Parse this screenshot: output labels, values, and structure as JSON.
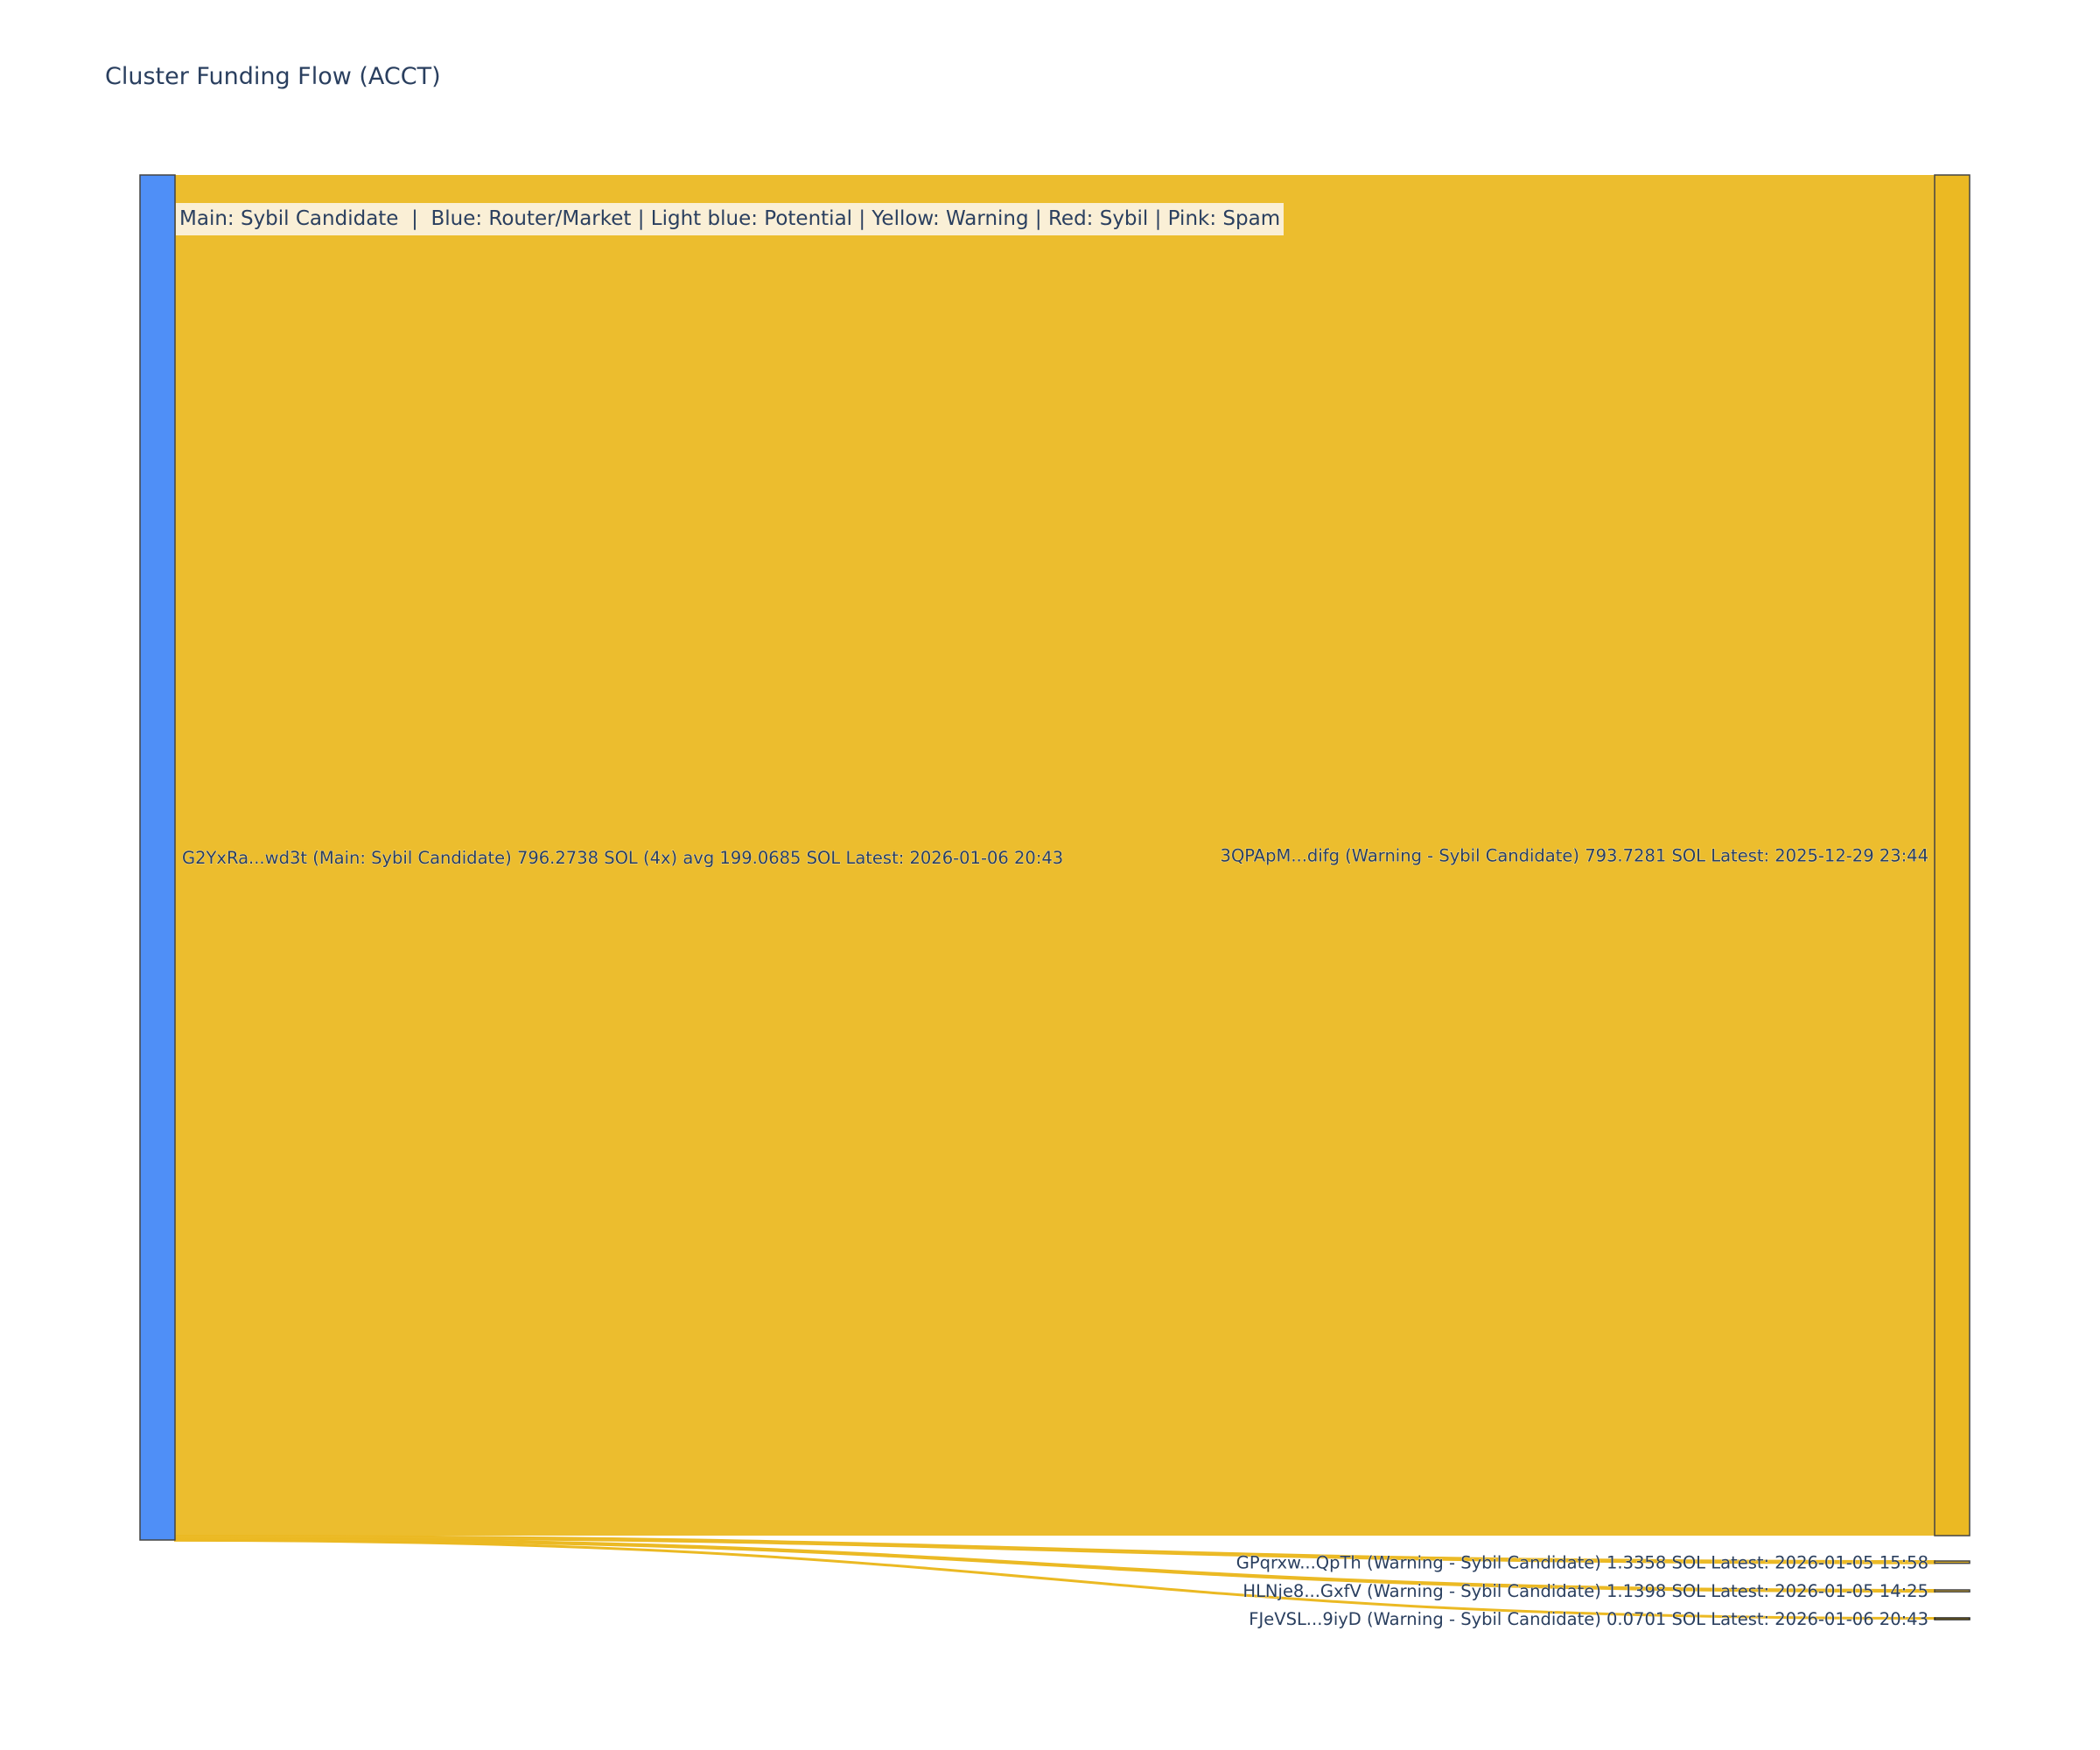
{
  "title": "Cluster Funding Flow (ACCT)",
  "legend_text": "Main: Sybil Candidate  |  Blue: Router/Market | Light blue: Potential | Yellow: Warning | Red: Sybil | Pink: Spam",
  "chart_data": {
    "type": "sankey",
    "nodes": [
      {
        "id": "src",
        "label": "G2YxRa...wd3t (Main: Sybil Candidate) 796.2738 SOL (4x) avg 199.0685 SOL Latest: 2026-01-06 20:43",
        "color": "#4f8ff7"
      },
      {
        "id": "n1",
        "label": "3QPApM...difg (Warning - Sybil Candidate) 793.7281 SOL Latest: 2025-12-29 23:44",
        "color": "#ebb923"
      },
      {
        "id": "n2",
        "label": "GPqrxw...QpTh (Warning - Sybil Candidate) 1.3358 SOL Latest: 2026-01-05 15:58",
        "color": "#ebb923"
      },
      {
        "id": "n3",
        "label": "HLNje8...GxfV (Warning - Sybil Candidate) 1.1398 SOL Latest: 2026-01-05 14:25",
        "color": "#ebb923"
      },
      {
        "id": "n4",
        "label": "FJeVSL...9iyD (Warning - Sybil Candidate) 0.0701 SOL Latest: 2026-01-06 20:43",
        "color": "#ebb923"
      }
    ],
    "links": [
      {
        "source": "src",
        "target": "n1",
        "value": 793.7281,
        "color": "#ebb923"
      },
      {
        "source": "src",
        "target": "n2",
        "value": 1.3358,
        "color": "#ebb923"
      },
      {
        "source": "src",
        "target": "n3",
        "value": 1.1398,
        "color": "#ebb923"
      },
      {
        "source": "src",
        "target": "n4",
        "value": 0.0701,
        "color": "#ebb923"
      }
    ]
  }
}
